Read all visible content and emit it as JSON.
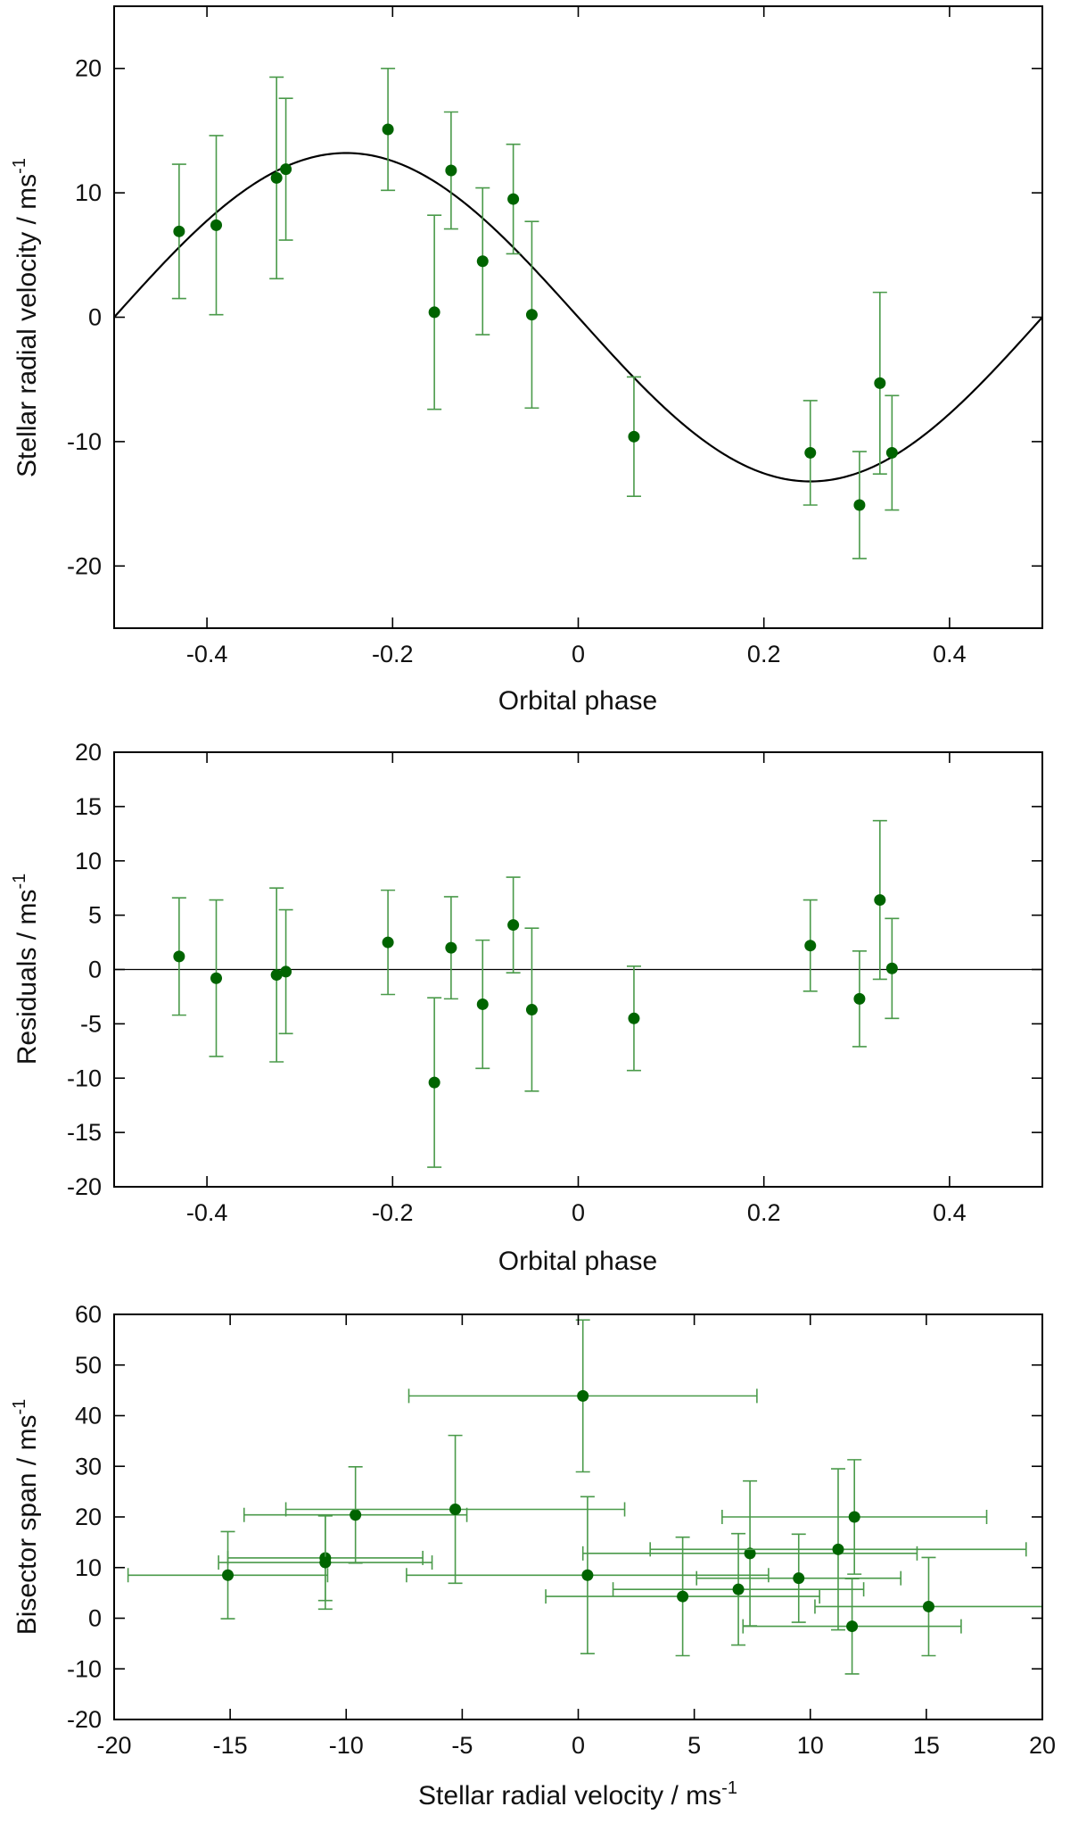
{
  "chart_data": [
    {
      "id": "rv",
      "type": "scatter",
      "xlabel": "Orbital phase",
      "ylabel": "Stellar radial velocity / ms",
      "ylabel_sup": "-1",
      "xlim": [
        -0.5,
        0.5
      ],
      "ylim": [
        -25,
        25
      ],
      "xticks": [
        -0.4,
        -0.2,
        0,
        0.2,
        0.4
      ],
      "xtick_labels": [
        "-0.4",
        "-0.2",
        "0",
        "0.2",
        "0.4"
      ],
      "yticks": [
        -20,
        -10,
        0,
        10,
        20
      ],
      "ytick_labels": [
        "-20",
        "-10",
        "0",
        "10",
        "20"
      ],
      "model": {
        "type": "sine",
        "amplitude": 13.2,
        "period": 1,
        "zero_phase": 0
      },
      "x": [
        -0.43,
        -0.39,
        -0.325,
        -0.315,
        -0.205,
        -0.155,
        -0.137,
        -0.103,
        -0.07,
        -0.05,
        0.06,
        0.25,
        0.303,
        0.325,
        0.338
      ],
      "y": [
        6.9,
        7.4,
        11.2,
        11.9,
        15.1,
        0.4,
        11.8,
        4.5,
        9.5,
        0.2,
        -9.6,
        -10.9,
        -15.1,
        -5.3,
        -10.9
      ],
      "yerr": [
        5.4,
        7.2,
        8.1,
        5.7,
        4.9,
        7.8,
        4.7,
        5.9,
        4.4,
        7.5,
        4.8,
        4.2,
        4.3,
        7.3,
        4.6
      ],
      "color": "#006400",
      "errcolor": "#4a9a4a"
    },
    {
      "id": "res",
      "type": "scatter",
      "xlabel": "Orbital phase",
      "ylabel": "Residuals / ms",
      "ylabel_sup": "-1",
      "xlim": [
        -0.5,
        0.5
      ],
      "ylim": [
        -20,
        20
      ],
      "xticks": [
        -0.4,
        -0.2,
        0,
        0.2,
        0.4
      ],
      "xtick_labels": [
        "-0.4",
        "-0.2",
        "0",
        "0.2",
        "0.4"
      ],
      "yticks": [
        -20,
        -15,
        -10,
        -5,
        0,
        5,
        10,
        15,
        20
      ],
      "ytick_labels": [
        "-20",
        "-15",
        "-10",
        "-5",
        "0",
        "5",
        "10",
        "15",
        "20"
      ],
      "zero_line": true,
      "x": [
        -0.43,
        -0.39,
        -0.325,
        -0.315,
        -0.205,
        -0.155,
        -0.137,
        -0.103,
        -0.07,
        -0.05,
        0.06,
        0.25,
        0.303,
        0.325,
        0.338
      ],
      "y": [
        1.2,
        -0.8,
        -0.5,
        -0.2,
        2.5,
        -10.4,
        2.0,
        -3.2,
        4.1,
        -3.7,
        -4.5,
        2.2,
        -2.7,
        6.4,
        0.1
      ],
      "yerr": [
        5.4,
        7.2,
        8.0,
        5.7,
        4.8,
        7.8,
        4.7,
        5.9,
        4.4,
        7.5,
        4.8,
        4.2,
        4.4,
        7.3,
        4.6
      ],
      "color": "#006400",
      "errcolor": "#4a9a4a"
    },
    {
      "id": "bis",
      "type": "scatter",
      "xlabel": "Stellar radial velocity / ms",
      "xlabel_sup": "-1",
      "ylabel": "Bisector span / ms",
      "ylabel_sup": "-1",
      "xlim": [
        -20,
        20
      ],
      "ylim": [
        -20,
        60
      ],
      "xticks": [
        -20,
        -15,
        -10,
        -5,
        0,
        5,
        10,
        15,
        20
      ],
      "xtick_labels": [
        "-20",
        "-15",
        "-10",
        "-5",
        "0",
        "5",
        "10",
        "15",
        "20"
      ],
      "yticks": [
        -20,
        -10,
        0,
        10,
        20,
        30,
        40,
        50,
        60
      ],
      "ytick_labels": [
        "-20",
        "-10",
        "0",
        "10",
        "20",
        "30",
        "40",
        "50",
        "60"
      ],
      "x": [
        6.9,
        7.4,
        11.2,
        11.9,
        15.1,
        0.4,
        11.8,
        4.5,
        9.5,
        0.2,
        -9.6,
        -10.9,
        -15.1,
        -5.3,
        -10.9
      ],
      "y": [
        5.7,
        12.8,
        13.6,
        20.0,
        2.3,
        8.5,
        -1.6,
        4.3,
        7.9,
        43.9,
        20.4,
        11.9,
        8.5,
        21.5,
        11.0
      ],
      "xerr": [
        5.4,
        7.2,
        8.1,
        5.7,
        4.9,
        7.8,
        4.7,
        5.9,
        4.4,
        7.5,
        4.8,
        4.2,
        4.3,
        7.3,
        4.6
      ],
      "yerr": [
        11.0,
        14.3,
        15.9,
        11.3,
        9.7,
        15.5,
        9.4,
        11.7,
        8.7,
        15.0,
        9.5,
        8.4,
        8.6,
        14.6,
        9.2
      ],
      "color": "#006400",
      "errcolor": "#4a9a4a"
    }
  ]
}
